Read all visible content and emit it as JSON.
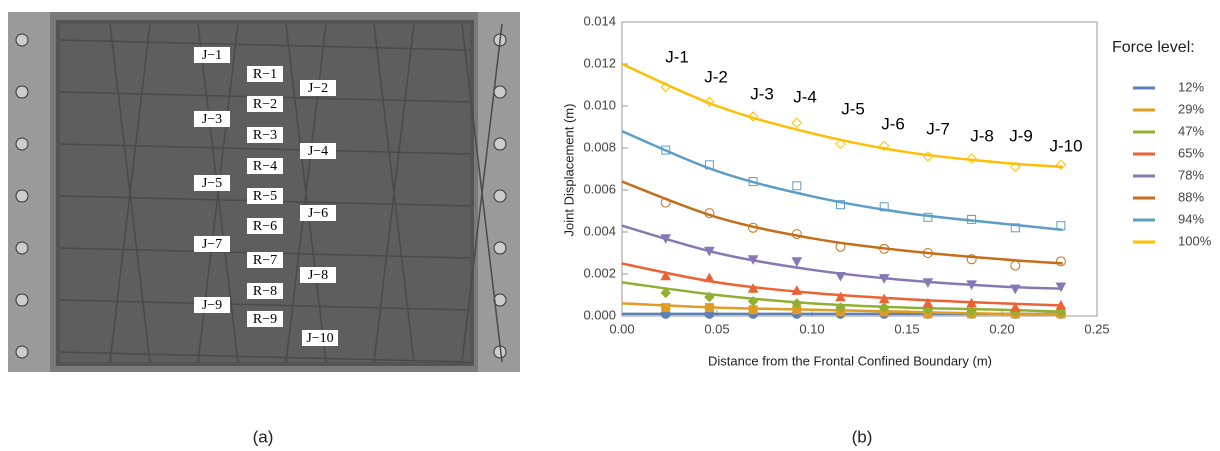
{
  "photo": {
    "joint_labels": [
      "J−1",
      "J−2",
      "J−3",
      "J−4",
      "J−5",
      "J−6",
      "J−7",
      "J−8",
      "J−9",
      "J−10"
    ],
    "rod_labels": [
      "R−1",
      "R−2",
      "R−3",
      "R−4",
      "R−5",
      "R−6",
      "R−7",
      "R−8",
      "R−9"
    ]
  },
  "captions": [
    "(a)",
    "(b)"
  ],
  "chart_data": {
    "type": "scatter",
    "x_label": "Distance from the Frontal Confined Boundary (m)",
    "y_label": "Joint Displacement (m)",
    "legend_title": "Force level:",
    "legend_position": "right",
    "annotations": [
      "J-1",
      "J-2",
      "J-3",
      "J-4",
      "J-5",
      "J-6",
      "J-7",
      "J-8",
      "J-9",
      "J-10"
    ],
    "x": [
      0.023,
      0.046,
      0.069,
      0.092,
      0.115,
      0.138,
      0.161,
      0.184,
      0.207,
      0.231
    ],
    "fit_x": [
      0,
      0.05,
      0.1,
      0.15,
      0.2,
      0.232
    ],
    "xlim": [
      0,
      0.25
    ],
    "ylim": [
      0,
      0.014
    ],
    "xticks": [
      {
        "value": 0,
        "label": "0.00"
      },
      0.05,
      {
        "value": 0.1,
        "label": "0.10"
      },
      0.15,
      {
        "value": 0.2,
        "label": "0.20"
      },
      0.25
    ],
    "yticks": [
      {
        "value": 0,
        "label": "0.000"
      },
      0.002,
      0.004,
      0.006,
      0.008,
      {
        "value": 0.01,
        "label": "0.010"
      },
      0.012,
      0.014
    ],
    "series": [
      {
        "name": "12%",
        "color": "#5e81b5",
        "marker": "circle",
        "filled": true,
        "values": [
          0.0001,
          0.0001,
          0.0001,
          0.0001,
          0.0001,
          0.0001,
          0.0001,
          0.0001,
          0.0001,
          0.0001
        ],
        "fit_values": [
          0.0001,
          0.0001,
          0.0001,
          0.0001,
          0.0001,
          0.0001
        ]
      },
      {
        "name": "29%",
        "color": "#e19c24",
        "marker": "square",
        "filled": true,
        "values": [
          0.0004,
          0.0004,
          0.0003,
          0.0003,
          0.0002,
          0.0002,
          0.0001,
          0.0001,
          0.0001,
          0.0001
        ],
        "fit_values": [
          0.0006,
          0.0004,
          0.0003,
          0.0002,
          0.0001,
          0.0001
        ]
      },
      {
        "name": "47%",
        "color": "#8fb032",
        "marker": "diamond",
        "filled": true,
        "values": [
          0.0011,
          0.0009,
          0.0007,
          0.0006,
          0.0004,
          0.0004,
          0.0003,
          0.0002,
          0.0002,
          0.0002
        ],
        "fit_values": [
          0.0016,
          0.001,
          0.0006,
          0.0004,
          0.0003,
          0.0002
        ]
      },
      {
        "name": "65%",
        "color": "#eb6235",
        "marker": "triangle",
        "filled": true,
        "values": [
          0.0019,
          0.0018,
          0.0013,
          0.0012,
          0.0009,
          0.0008,
          0.0006,
          0.0006,
          0.0004,
          0.0005
        ],
        "fit_values": [
          0.0025,
          0.0016,
          0.0011,
          0.0008,
          0.0006,
          0.0005
        ]
      },
      {
        "name": "78%",
        "color": "#8778b3",
        "marker": "triangle-down",
        "filled": true,
        "values": [
          0.0037,
          0.0031,
          0.0027,
          0.0026,
          0.0019,
          0.0018,
          0.0016,
          0.0015,
          0.0013,
          0.0014
        ],
        "fit_values": [
          0.0043,
          0.003,
          0.0022,
          0.0017,
          0.0014,
          0.0013
        ]
      },
      {
        "name": "88%",
        "color": "#c56e1a",
        "marker": "circle",
        "filled": false,
        "values": [
          0.0054,
          0.0049,
          0.0042,
          0.0039,
          0.0033,
          0.0032,
          0.003,
          0.0027,
          0.0024,
          0.0026
        ],
        "fit_values": [
          0.0064,
          0.0047,
          0.0037,
          0.0031,
          0.0027,
          0.0025
        ]
      },
      {
        "name": "94%",
        "color": "#5d9ec7",
        "marker": "square",
        "filled": false,
        "values": [
          0.0079,
          0.0072,
          0.0064,
          0.0062,
          0.0053,
          0.0052,
          0.0047,
          0.0046,
          0.0042,
          0.0043
        ],
        "fit_values": [
          0.0088,
          0.0069,
          0.0057,
          0.0049,
          0.0044,
          0.0041
        ]
      },
      {
        "name": "100%",
        "color": "#ffbf00",
        "marker": "diamond",
        "filled": false,
        "values": [
          0.0109,
          0.0102,
          0.0095,
          0.0092,
          0.0082,
          0.0081,
          0.0076,
          0.0075,
          0.0071,
          0.0072
        ],
        "fit_values": [
          0.012,
          0.01,
          0.0087,
          0.0078,
          0.0073,
          0.0071
        ]
      }
    ]
  }
}
